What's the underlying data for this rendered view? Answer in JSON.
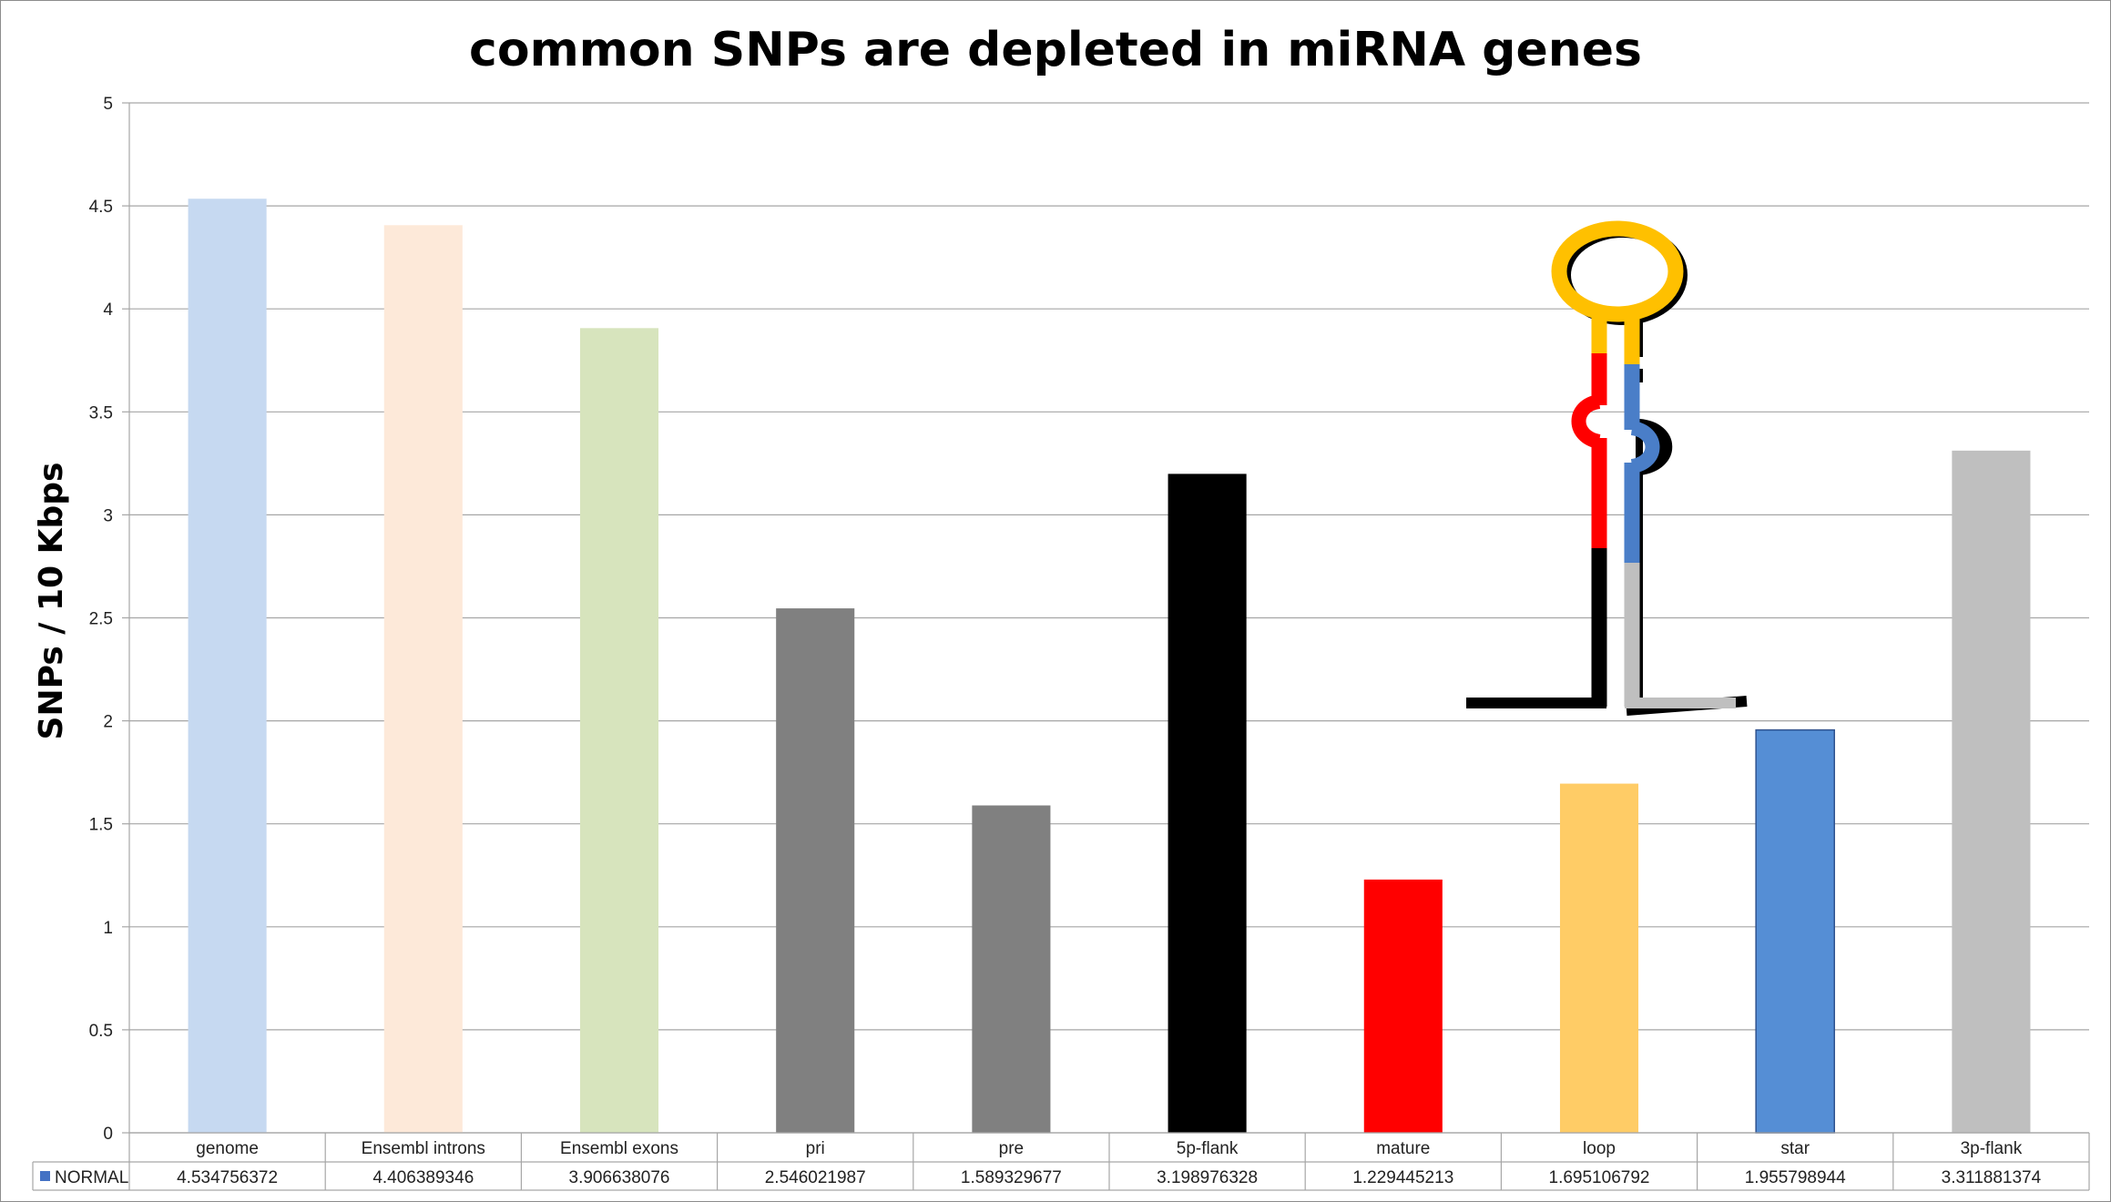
{
  "chart_data": {
    "type": "bar",
    "title": "common SNPs are depleted in miRNA genes",
    "xlabel": "",
    "ylabel": "SNPs / 10 Kbps",
    "ylim": [
      0,
      5
    ],
    "yticks": [
      "0",
      "0.5",
      "1",
      "1.5",
      "2",
      "2.5",
      "3",
      "3.5",
      "4",
      "4.5",
      "5"
    ],
    "grid": true,
    "categories": [
      "genome",
      "Ensembl introns",
      "Ensembl exons",
      "pri",
      "pre",
      "5p-flank",
      "mature",
      "loop",
      "star",
      "3p-flank"
    ],
    "series": [
      {
        "name": "NORMAL",
        "legend_color": "#4472c4",
        "values": [
          4.534756372,
          4.406389346,
          3.906638076,
          2.546021987,
          1.589329677,
          3.198976328,
          1.229445213,
          1.695106792,
          1.955798944,
          3.311881374
        ],
        "value_labels": [
          "4.534756372",
          "4.406389346",
          "3.906638076",
          "2.546021987",
          "1.589329677",
          "3.198976328",
          "1.229445213",
          "1.695106792",
          "1.955798944",
          "3.311881374"
        ],
        "bar_colors": [
          "#c6d9f1",
          "#fde9d9",
          "#d7e4bd",
          "#808080",
          "#808080",
          "#000000",
          "#ff0000",
          "#ffcc66",
          "#558ed5",
          "#bfbfbf"
        ]
      }
    ],
    "data_table": true
  },
  "diagram": {
    "name": "miRNA hairpin schematic",
    "colors": {
      "flank5": "#000000",
      "mature": "#ff0000",
      "loop": "#ffc000",
      "star": "#4a7ec8",
      "flank3": "#bfbfbf"
    }
  }
}
